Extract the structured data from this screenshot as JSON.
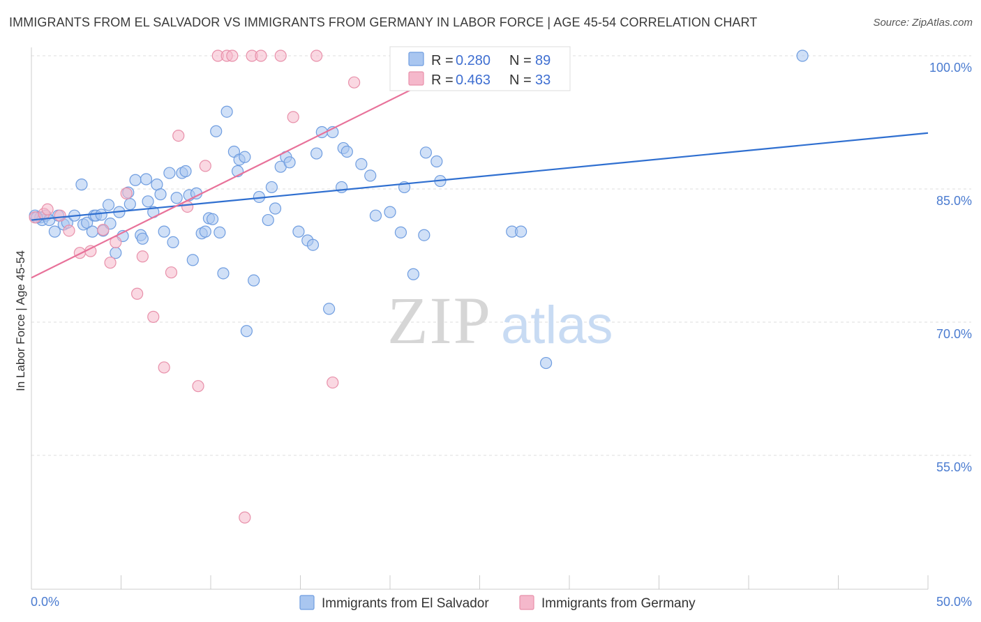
{
  "title": "IMMIGRANTS FROM EL SALVADOR VS IMMIGRANTS FROM GERMANY IN LABOR FORCE | AGE 45-54 CORRELATION CHART",
  "source": "Source: ZipAtlas.com",
  "watermark": {
    "zip": "ZIP",
    "atlas": "atlas"
  },
  "legend_box": {
    "rows": [
      {
        "r_label": "R = ",
        "r_value": "0.280",
        "n_label": "N = ",
        "n_value": "89"
      },
      {
        "r_label": "R = ",
        "r_value": "0.463",
        "n_label": "N = ",
        "n_value": "33"
      }
    ]
  },
  "colors": {
    "blue_fill": "#a9c6f0",
    "blue_stroke": "#6f9de0",
    "blue_line": "#2f6fd0",
    "pink_fill": "#f5b8cb",
    "pink_stroke": "#e890aa",
    "pink_line": "#e8729a",
    "axis_label": "#4a7bd0",
    "grid": "#dddddd"
  },
  "chart_data": {
    "type": "scatter",
    "xlabel": "",
    "ylabel": "In Labor Force | Age 45-54",
    "xlim": [
      0,
      50
    ],
    "ylim": [
      40,
      101
    ],
    "x_tick_labels": [
      "0.0%",
      "50.0%"
    ],
    "y_ticks": [
      55,
      70,
      85,
      100
    ],
    "y_tick_labels": [
      "55.0%",
      "70.0%",
      "85.0%",
      "100.0%"
    ],
    "grid": "horizontal dashed",
    "legend_placement": "bottom-center",
    "series": [
      {
        "name": "Immigrants from El Salvador",
        "color": "#a9c6f0",
        "trend": {
          "x": [
            0,
            50
          ],
          "y": [
            81.5,
            91.3
          ]
        },
        "points": [
          [
            0.2,
            82.0
          ],
          [
            0.5,
            81.8
          ],
          [
            0.6,
            81.5
          ],
          [
            0.8,
            82.0
          ],
          [
            1.0,
            81.5
          ],
          [
            1.3,
            80.2
          ],
          [
            1.5,
            82.0
          ],
          [
            1.8,
            81.0
          ],
          [
            2.0,
            81.2
          ],
          [
            2.4,
            82.0
          ],
          [
            2.8,
            85.5
          ],
          [
            2.9,
            81.0
          ],
          [
            3.1,
            81.2
          ],
          [
            3.4,
            80.2
          ],
          [
            3.5,
            82.0
          ],
          [
            3.6,
            82.0
          ],
          [
            3.9,
            82.1
          ],
          [
            4.0,
            80.3
          ],
          [
            4.3,
            83.2
          ],
          [
            4.4,
            81.1
          ],
          [
            4.7,
            77.8
          ],
          [
            4.9,
            82.4
          ],
          [
            5.1,
            79.7
          ],
          [
            5.4,
            84.6
          ],
          [
            5.5,
            83.3
          ],
          [
            5.8,
            86.0
          ],
          [
            6.1,
            79.8
          ],
          [
            6.2,
            79.4
          ],
          [
            6.4,
            86.1
          ],
          [
            6.5,
            83.6
          ],
          [
            6.8,
            82.4
          ],
          [
            7.0,
            85.5
          ],
          [
            7.2,
            84.4
          ],
          [
            7.4,
            80.2
          ],
          [
            7.7,
            86.8
          ],
          [
            7.9,
            79.0
          ],
          [
            8.1,
            84.0
          ],
          [
            8.4,
            86.8
          ],
          [
            8.6,
            87.0
          ],
          [
            8.8,
            84.3
          ],
          [
            9.0,
            77.0
          ],
          [
            9.2,
            84.5
          ],
          [
            9.5,
            80.0
          ],
          [
            9.7,
            80.2
          ],
          [
            9.9,
            81.7
          ],
          [
            10.1,
            81.6
          ],
          [
            10.3,
            91.5
          ],
          [
            10.5,
            80.1
          ],
          [
            10.7,
            75.5
          ],
          [
            10.9,
            93.7
          ],
          [
            11.3,
            89.2
          ],
          [
            11.5,
            87.0
          ],
          [
            11.6,
            88.3
          ],
          [
            11.9,
            88.6
          ],
          [
            12.0,
            69.0
          ],
          [
            12.4,
            74.7
          ],
          [
            12.7,
            84.1
          ],
          [
            13.2,
            81.5
          ],
          [
            13.4,
            85.2
          ],
          [
            13.6,
            82.8
          ],
          [
            13.9,
            87.5
          ],
          [
            14.2,
            88.6
          ],
          [
            14.4,
            88.0
          ],
          [
            14.9,
            80.2
          ],
          [
            15.4,
            79.2
          ],
          [
            15.7,
            78.7
          ],
          [
            15.9,
            89.0
          ],
          [
            16.2,
            91.4
          ],
          [
            16.6,
            71.5
          ],
          [
            16.8,
            91.4
          ],
          [
            17.3,
            85.2
          ],
          [
            17.4,
            89.6
          ],
          [
            17.6,
            89.2
          ],
          [
            18.4,
            87.8
          ],
          [
            18.9,
            86.5
          ],
          [
            19.2,
            82.0
          ],
          [
            20.0,
            82.4
          ],
          [
            20.6,
            80.1
          ],
          [
            20.8,
            85.2
          ],
          [
            21.3,
            75.4
          ],
          [
            21.9,
            79.8
          ],
          [
            22.0,
            89.1
          ],
          [
            22.6,
            88.1
          ],
          [
            22.8,
            85.9
          ],
          [
            26.8,
            80.2
          ],
          [
            27.3,
            80.2
          ],
          [
            28.7,
            65.4
          ],
          [
            43.0,
            100.0
          ],
          [
            0.3,
            81.8
          ]
        ]
      },
      {
        "name": "Immigrants from Germany",
        "color": "#f5b8cb",
        "trend": {
          "x": [
            0,
            25
          ],
          "y": [
            75.0,
            100.0
          ]
        },
        "points": [
          [
            0.2,
            81.8
          ],
          [
            0.7,
            82.2
          ],
          [
            0.9,
            82.7
          ],
          [
            1.6,
            82.0
          ],
          [
            2.1,
            80.3
          ],
          [
            2.7,
            77.8
          ],
          [
            3.3,
            78.0
          ],
          [
            4.0,
            80.4
          ],
          [
            4.4,
            76.7
          ],
          [
            4.7,
            79.0
          ],
          [
            5.3,
            84.5
          ],
          [
            5.9,
            73.2
          ],
          [
            6.2,
            77.4
          ],
          [
            6.8,
            70.6
          ],
          [
            7.4,
            64.9
          ],
          [
            7.8,
            75.6
          ],
          [
            8.2,
            91.0
          ],
          [
            8.7,
            83.0
          ],
          [
            9.3,
            62.8
          ],
          [
            9.7,
            87.6
          ],
          [
            10.4,
            100.0
          ],
          [
            10.9,
            100.0
          ],
          [
            11.2,
            100.0
          ],
          [
            11.9,
            48.0
          ],
          [
            12.3,
            100.0
          ],
          [
            12.8,
            100.0
          ],
          [
            13.9,
            100.0
          ],
          [
            14.6,
            93.1
          ],
          [
            15.9,
            100.0
          ],
          [
            16.8,
            63.2
          ],
          [
            18.0,
            97.0
          ],
          [
            21.5,
            100.0
          ],
          [
            22.4,
            100.0
          ]
        ]
      }
    ]
  },
  "bottom_legend": [
    {
      "label": "Immigrants from El Salvador"
    },
    {
      "label": "Immigrants from Germany"
    }
  ]
}
